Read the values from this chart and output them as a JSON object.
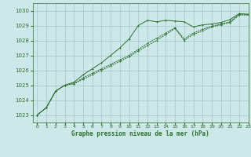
{
  "title": "Graphe pression niveau de la mer (hPa)",
  "background_color": "#cce8e8",
  "grid_color": "#aacccc",
  "line_color": "#2d6e2d",
  "xlim": [
    -0.5,
    23
  ],
  "ylim": [
    1022.5,
    1030.5
  ],
  "xticks": [
    0,
    1,
    2,
    3,
    4,
    5,
    6,
    7,
    8,
    9,
    10,
    11,
    12,
    13,
    14,
    15,
    16,
    17,
    18,
    19,
    20,
    21,
    22,
    23
  ],
  "yticks": [
    1023,
    1024,
    1025,
    1026,
    1027,
    1028,
    1029,
    1030
  ],
  "series1_x": [
    0,
    1,
    2,
    3,
    4,
    5,
    6,
    7,
    8,
    9,
    10,
    11,
    12,
    13,
    14,
    15,
    16,
    17,
    18,
    19,
    20,
    21,
    22,
    23
  ],
  "series1_y": [
    1023.0,
    1023.5,
    1024.6,
    1025.0,
    1025.2,
    1025.7,
    1026.1,
    1026.5,
    1027.0,
    1027.5,
    1028.1,
    1029.0,
    1029.35,
    1029.25,
    1029.35,
    1029.3,
    1029.25,
    1028.9,
    1029.05,
    1029.1,
    1029.2,
    1029.4,
    1029.8,
    1029.75
  ],
  "series2_x": [
    0,
    1,
    2,
    3,
    4,
    5,
    6,
    7,
    8,
    9,
    10,
    11,
    12,
    13,
    14,
    15,
    16,
    17,
    18,
    19,
    20,
    21,
    22,
    23
  ],
  "series2_y": [
    1023.0,
    1023.5,
    1024.6,
    1025.0,
    1025.1,
    1025.5,
    1025.8,
    1026.1,
    1026.4,
    1026.7,
    1027.0,
    1027.4,
    1027.8,
    1028.15,
    1028.5,
    1028.85,
    1028.1,
    1028.5,
    1028.75,
    1028.95,
    1029.1,
    1029.25,
    1029.75,
    1029.75
  ],
  "series3_x": [
    0,
    1,
    2,
    3,
    4,
    5,
    6,
    7,
    8,
    9,
    10,
    11,
    12,
    13,
    14,
    15,
    16,
    17,
    18,
    19,
    20,
    21,
    22,
    23
  ],
  "series3_y": [
    1023.0,
    1023.5,
    1024.6,
    1025.0,
    1025.1,
    1025.4,
    1025.7,
    1026.0,
    1026.3,
    1026.6,
    1026.9,
    1027.3,
    1027.65,
    1028.0,
    1028.4,
    1028.8,
    1028.0,
    1028.4,
    1028.65,
    1028.9,
    1029.05,
    1029.2,
    1029.7,
    1029.7
  ]
}
